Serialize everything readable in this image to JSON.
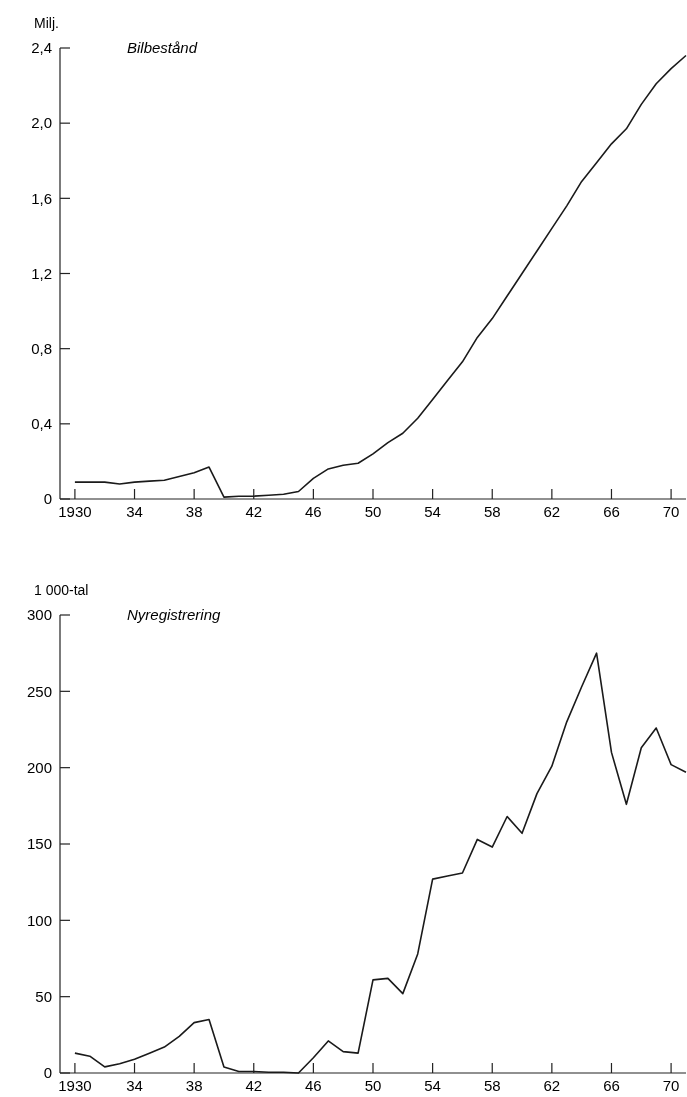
{
  "chart_data": [
    {
      "type": "line",
      "title": "Bilbestånd",
      "ylabel": "Milj.",
      "x": [
        1930,
        1931,
        1932,
        1933,
        1934,
        1935,
        1936,
        1937,
        1938,
        1939,
        1940,
        1941,
        1942,
        1943,
        1944,
        1945,
        1946,
        1947,
        1948,
        1949,
        1950,
        1951,
        1952,
        1953,
        1954,
        1955,
        1956,
        1957,
        1958,
        1959,
        1960,
        1961,
        1962,
        1963,
        1964,
        1965,
        1966,
        1967,
        1968,
        1969,
        1970,
        1971
      ],
      "series": [
        {
          "color": "#1a1a1a",
          "values": [
            0.09,
            0.09,
            0.09,
            0.08,
            0.09,
            0.095,
            0.1,
            0.12,
            0.14,
            0.17,
            0.01,
            0.015,
            0.015,
            0.02,
            0.025,
            0.04,
            0.11,
            0.16,
            0.18,
            0.19,
            0.24,
            0.3,
            0.35,
            0.43,
            0.53,
            0.63,
            0.73,
            0.86,
            0.96,
            1.08,
            1.2,
            1.32,
            1.44,
            1.56,
            1.69,
            1.79,
            1.89,
            1.97,
            2.1,
            2.21,
            2.29,
            2.36
          ]
        }
      ],
      "xlim": [
        1929,
        1971
      ],
      "xticks": [
        {
          "value": 1930,
          "label": "1930"
        },
        {
          "value": 1934,
          "label": "34"
        },
        {
          "value": 1938,
          "label": "38"
        },
        {
          "value": 1942,
          "label": "42"
        },
        {
          "value": 1946,
          "label": "46"
        },
        {
          "value": 1950,
          "label": "50"
        },
        {
          "value": 1954,
          "label": "54"
        },
        {
          "value": 1958,
          "label": "58"
        },
        {
          "value": 1962,
          "label": "62"
        },
        {
          "value": 1966,
          "label": "66"
        },
        {
          "value": 1970,
          "label": "70"
        }
      ],
      "ylim": [
        0,
        2.4
      ],
      "yticks": [
        0,
        {
          "value": 0.4,
          "label": "0,4"
        },
        {
          "value": 0.8,
          "label": "0,8"
        },
        {
          "value": 1.2,
          "label": "1,2"
        },
        {
          "value": 1.6,
          "label": "1,6"
        },
        {
          "value": 2.0,
          "label": "2,0"
        },
        {
          "value": 2.4,
          "label": "2,4"
        }
      ]
    },
    {
      "type": "line",
      "title": "Nyregistrering",
      "ylabel": "1 000-tal",
      "x": [
        1930,
        1931,
        1932,
        1933,
        1934,
        1935,
        1936,
        1937,
        1938,
        1939,
        1940,
        1941,
        1942,
        1943,
        1944,
        1945,
        1946,
        1947,
        1948,
        1949,
        1950,
        1951,
        1952,
        1953,
        1954,
        1955,
        1956,
        1957,
        1958,
        1959,
        1960,
        1961,
        1962,
        1963,
        1964,
        1965,
        1966,
        1967,
        1968,
        1969,
        1970,
        1971
      ],
      "series": [
        {
          "color": "#1a1a1a",
          "values": [
            13,
            11,
            4,
            6,
            9,
            13,
            17,
            24,
            33,
            35,
            4,
            1,
            1,
            0.5,
            0.5,
            0,
            10,
            21,
            14,
            13,
            61,
            62,
            52,
            78,
            127,
            129,
            131,
            153,
            148,
            168,
            157,
            183,
            201,
            230,
            253,
            275,
            210,
            176,
            213,
            226,
            202,
            197
          ]
        }
      ],
      "xlim": [
        1929,
        1971
      ],
      "xticks": [
        {
          "value": 1930,
          "label": "1930"
        },
        {
          "value": 1934,
          "label": "34"
        },
        {
          "value": 1938,
          "label": "38"
        },
        {
          "value": 1942,
          "label": "42"
        },
        {
          "value": 1946,
          "label": "46"
        },
        {
          "value": 1950,
          "label": "50"
        },
        {
          "value": 1954,
          "label": "54"
        },
        {
          "value": 1958,
          "label": "58"
        },
        {
          "value": 1962,
          "label": "62"
        },
        {
          "value": 1966,
          "label": "66"
        },
        {
          "value": 1970,
          "label": "70"
        }
      ],
      "ylim": [
        0,
        300
      ],
      "yticks": [
        0,
        50,
        100,
        150,
        200,
        250,
        300
      ]
    }
  ]
}
